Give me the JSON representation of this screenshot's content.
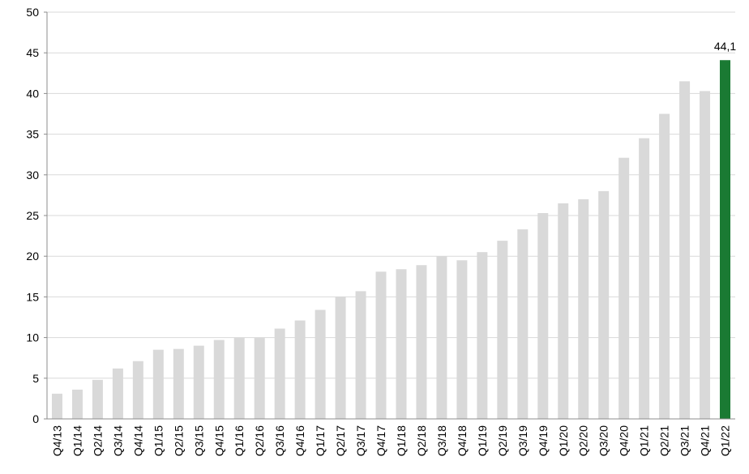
{
  "chart_data": {
    "type": "bar",
    "title": "",
    "xlabel": "",
    "ylabel": "",
    "ylim": [
      0,
      50
    ],
    "yticks": [
      0,
      5,
      10,
      15,
      20,
      25,
      30,
      35,
      40,
      45,
      50
    ],
    "grid": true,
    "legend": "none",
    "colors": {
      "default_bar": "#d9d9d9",
      "highlight_bar": "#1a7a33"
    },
    "categories": [
      "Q4/13",
      "Q1/14",
      "Q2/14",
      "Q3/14",
      "Q4/14",
      "Q1/15",
      "Q2/15",
      "Q3/15",
      "Q4/15",
      "Q1/16",
      "Q2/16",
      "Q3/16",
      "Q4/16",
      "Q1/17",
      "Q2/17",
      "Q3/17",
      "Q4/17",
      "Q1/18",
      "Q2/18",
      "Q3/18",
      "Q4/18",
      "Q1/19",
      "Q2/19",
      "Q3/19",
      "Q4/19",
      "Q1/20",
      "Q2/20",
      "Q3/20",
      "Q4/20",
      "Q1/21",
      "Q2/21",
      "Q3/21",
      "Q4/21",
      "Q1/22"
    ],
    "values": [
      3.1,
      3.6,
      4.8,
      6.2,
      7.1,
      8.5,
      8.6,
      9.0,
      9.7,
      10.0,
      10.0,
      11.1,
      12.1,
      13.4,
      15.0,
      15.7,
      18.1,
      18.4,
      18.9,
      20.0,
      19.5,
      20.5,
      21.9,
      23.3,
      25.3,
      26.5,
      27.0,
      28.0,
      32.1,
      34.5,
      37.5,
      41.5,
      40.3,
      44.1
    ],
    "highlight_index": 33,
    "data_labels": [
      {
        "index": 33,
        "text": "44,1"
      }
    ]
  }
}
